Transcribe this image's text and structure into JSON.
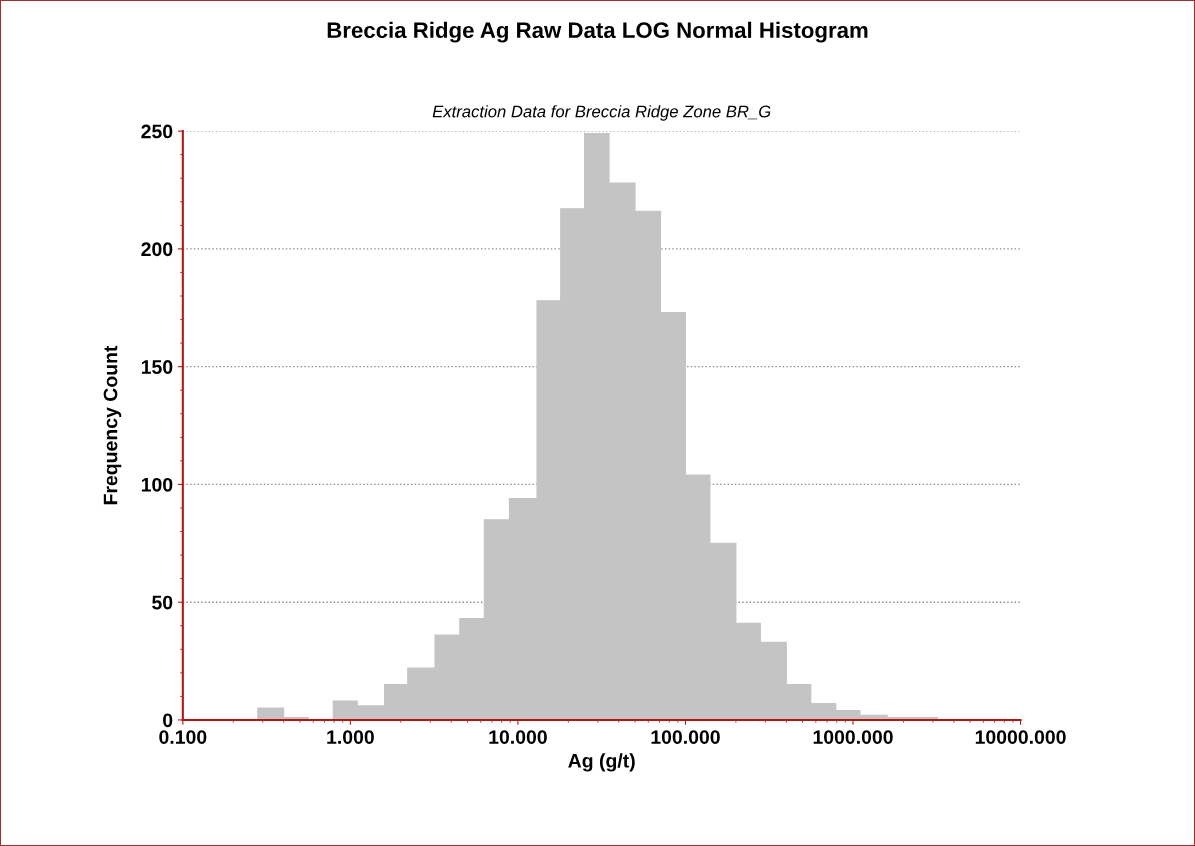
{
  "chart_data": {
    "type": "histogram",
    "title": "Breccia Ridge Ag Raw Data LOG Normal Histogram",
    "subtitle": "Extraction Data for Breccia Ridge Zone BR_G",
    "xlabel": "Ag (g/t)",
    "ylabel": "Frequency Count",
    "bins": [
      0.28,
      0.4,
      0.56,
      0.79,
      1.1,
      1.6,
      2.2,
      3.2,
      4.5,
      6.3,
      8.9,
      13,
      18,
      25,
      35,
      50,
      71,
      100,
      140,
      200,
      280,
      400,
      560,
      790,
      1100,
      1600,
      2200,
      3200
    ],
    "values": [
      5,
      1,
      0,
      8,
      6,
      15,
      22,
      36,
      43,
      85,
      94,
      178,
      217,
      249,
      228,
      216,
      173,
      104,
      75,
      41,
      33,
      15,
      7,
      4,
      2,
      1,
      1
    ],
    "color": "#c4c4c4",
    "log": "x",
    "xlim": [
      0.1,
      10000
    ],
    "xticks": [
      {
        "value": 0.1,
        "label": "0.100"
      },
      {
        "value": 1,
        "label": "1.000"
      },
      {
        "value": 10,
        "label": "10.000"
      },
      {
        "value": 100,
        "label": "100.000"
      },
      {
        "value": 1000,
        "label": "1000.000"
      },
      {
        "value": 10000,
        "label": "10000.000"
      }
    ],
    "ylim": [
      0,
      250
    ],
    "yticks": [
      0,
      50,
      100,
      150,
      200,
      250
    ],
    "grid": "y"
  }
}
